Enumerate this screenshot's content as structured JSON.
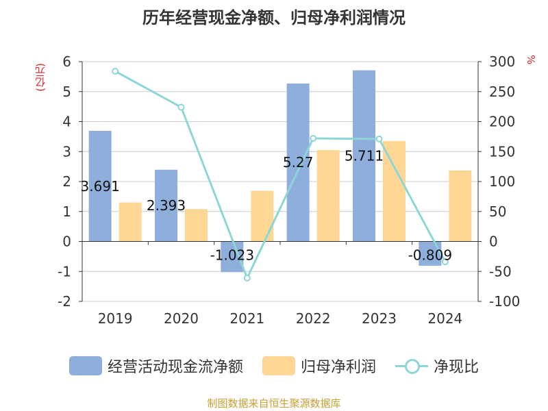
{
  "chart_data": {
    "type": "bar",
    "title": "历年经营现金净额、归母净利润情况",
    "left_axis_unit": "(亿元)",
    "right_axis_unit": "%",
    "categories": [
      "2019",
      "2020",
      "2021",
      "2022",
      "2023",
      "2024"
    ],
    "left_ylim": [
      -2,
      6
    ],
    "left_ticks": [
      -2,
      -1,
      0,
      1,
      2,
      3,
      4,
      5,
      6
    ],
    "right_ylim": [
      -100,
      300
    ],
    "right_ticks": [
      -100,
      -50,
      0,
      50,
      100,
      150,
      200,
      250,
      300
    ],
    "grid": true,
    "legend_position": "bottom",
    "series": [
      {
        "name": "经营活动现金流净额",
        "type": "bar",
        "axis": "left",
        "color": "#8eaedc",
        "values": [
          3.691,
          2.393,
          -1.023,
          5.27,
          5.711,
          -0.809
        ],
        "data_labels": [
          "3.691",
          "2.393",
          "-1.023",
          "5.27",
          "5.711",
          "-0.809"
        ]
      },
      {
        "name": "归母净利润",
        "type": "bar",
        "axis": "left",
        "color": "#ffd795",
        "values": [
          1.3,
          1.08,
          1.69,
          3.05,
          3.35,
          2.37
        ]
      },
      {
        "name": "净现比",
        "type": "line",
        "axis": "right",
        "color": "#8dd6d8",
        "values": [
          284,
          224,
          -61,
          172,
          171,
          -34
        ]
      }
    ]
  },
  "source": "制图数据来自恒生聚源数据库"
}
